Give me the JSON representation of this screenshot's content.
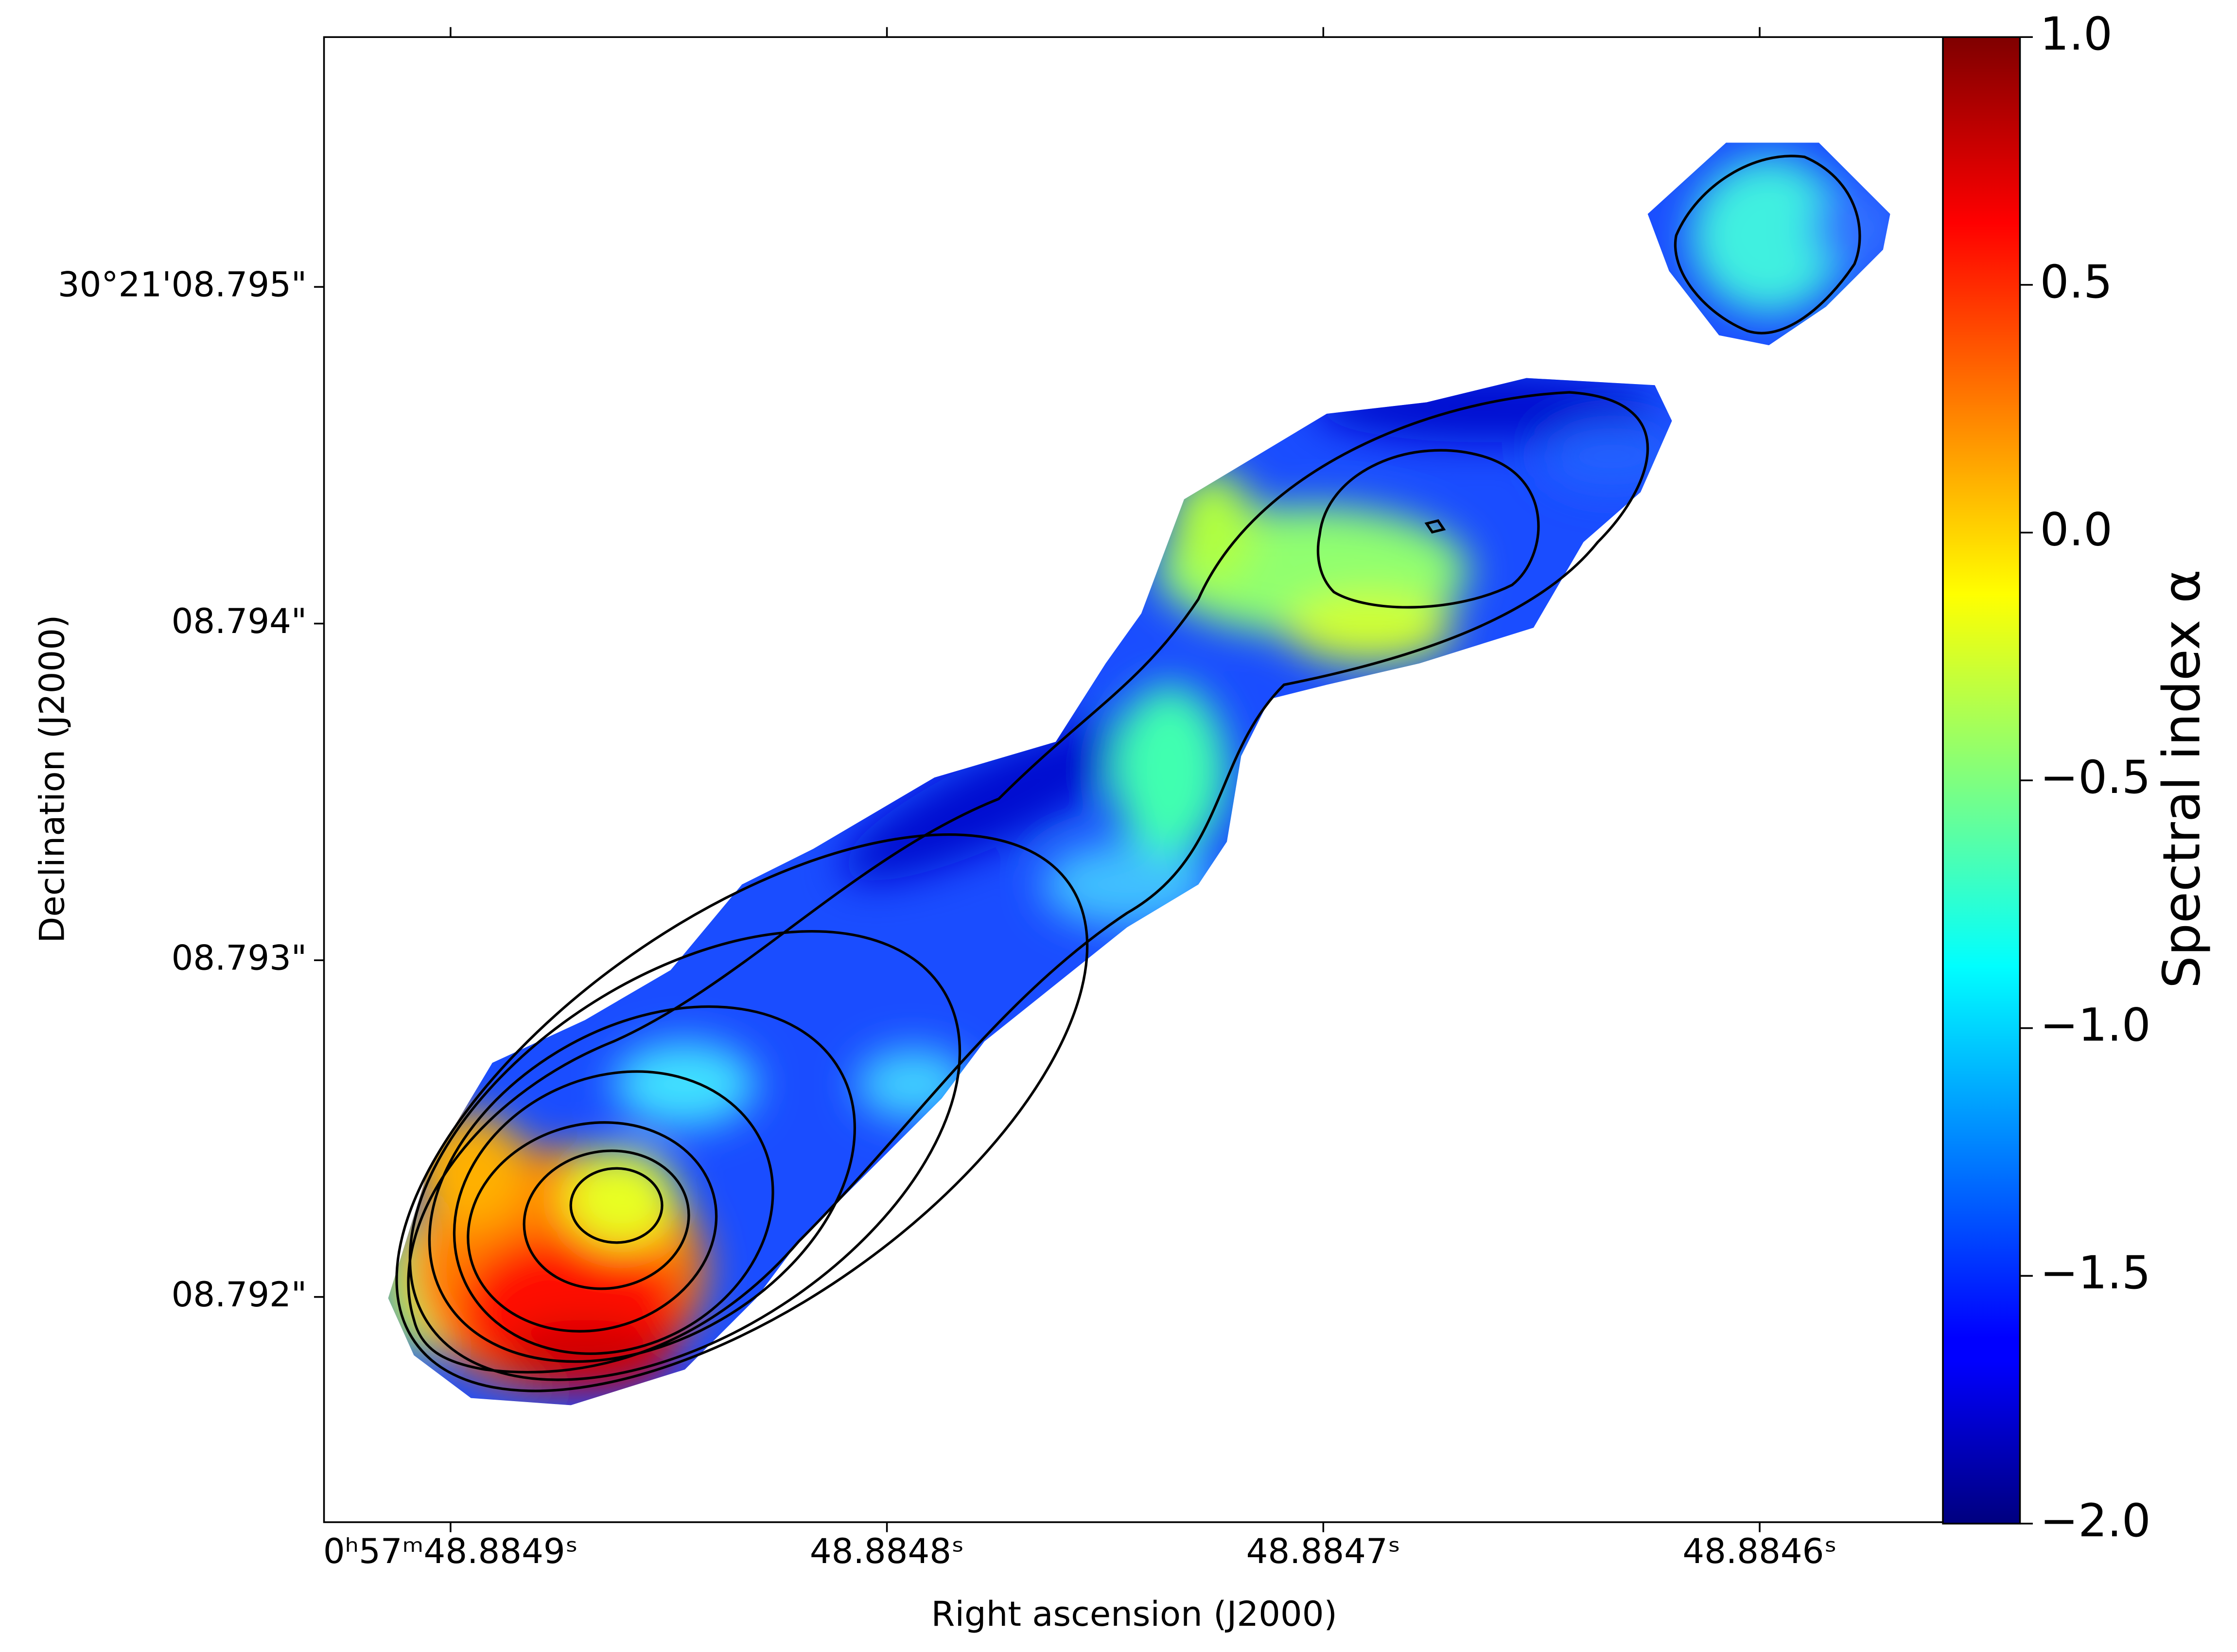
{
  "chart_data": {
    "type": "heatmap",
    "xlabel": "Right ascension (J2000)",
    "ylabel": "Declination (J2000)",
    "xlim": [
      48.884929,
      48.884558
    ],
    "ylim": [
      8.791331,
      8.795742
    ],
    "xticks": [
      {
        "value": 48.8849,
        "label": "0ʰ57ᵐ48.8849ˢ"
      },
      {
        "value": 48.8848,
        "label": "48.8848ˢ"
      },
      {
        "value": 48.8847,
        "label": "48.8847ˢ"
      },
      {
        "value": 48.8846,
        "label": "48.8846ˢ"
      }
    ],
    "yticks": [
      {
        "value": 8.792,
        "label": "08.792\""
      },
      {
        "value": 8.793,
        "label": "08.793\""
      },
      {
        "value": 8.794,
        "label": "08.794\""
      },
      {
        "value": 8.795,
        "label": "30°21'08.795\""
      }
    ],
    "colorbar": {
      "label": "Spectral index α",
      "colormap": "jet",
      "clim": [
        -2,
        1
      ],
      "ticks": [
        {
          "value": -2,
          "label": "−2.0"
        },
        {
          "value": -1.5,
          "label": "−1.5"
        },
        {
          "value": -1,
          "label": "−1.0"
        },
        {
          "value": -0.5,
          "label": "−0.5"
        },
        {
          "value": 0,
          "label": "0.0"
        },
        {
          "value": 0.5,
          "label": "0.5"
        },
        {
          "value": 1,
          "label": "1.0"
        }
      ]
    }
  }
}
